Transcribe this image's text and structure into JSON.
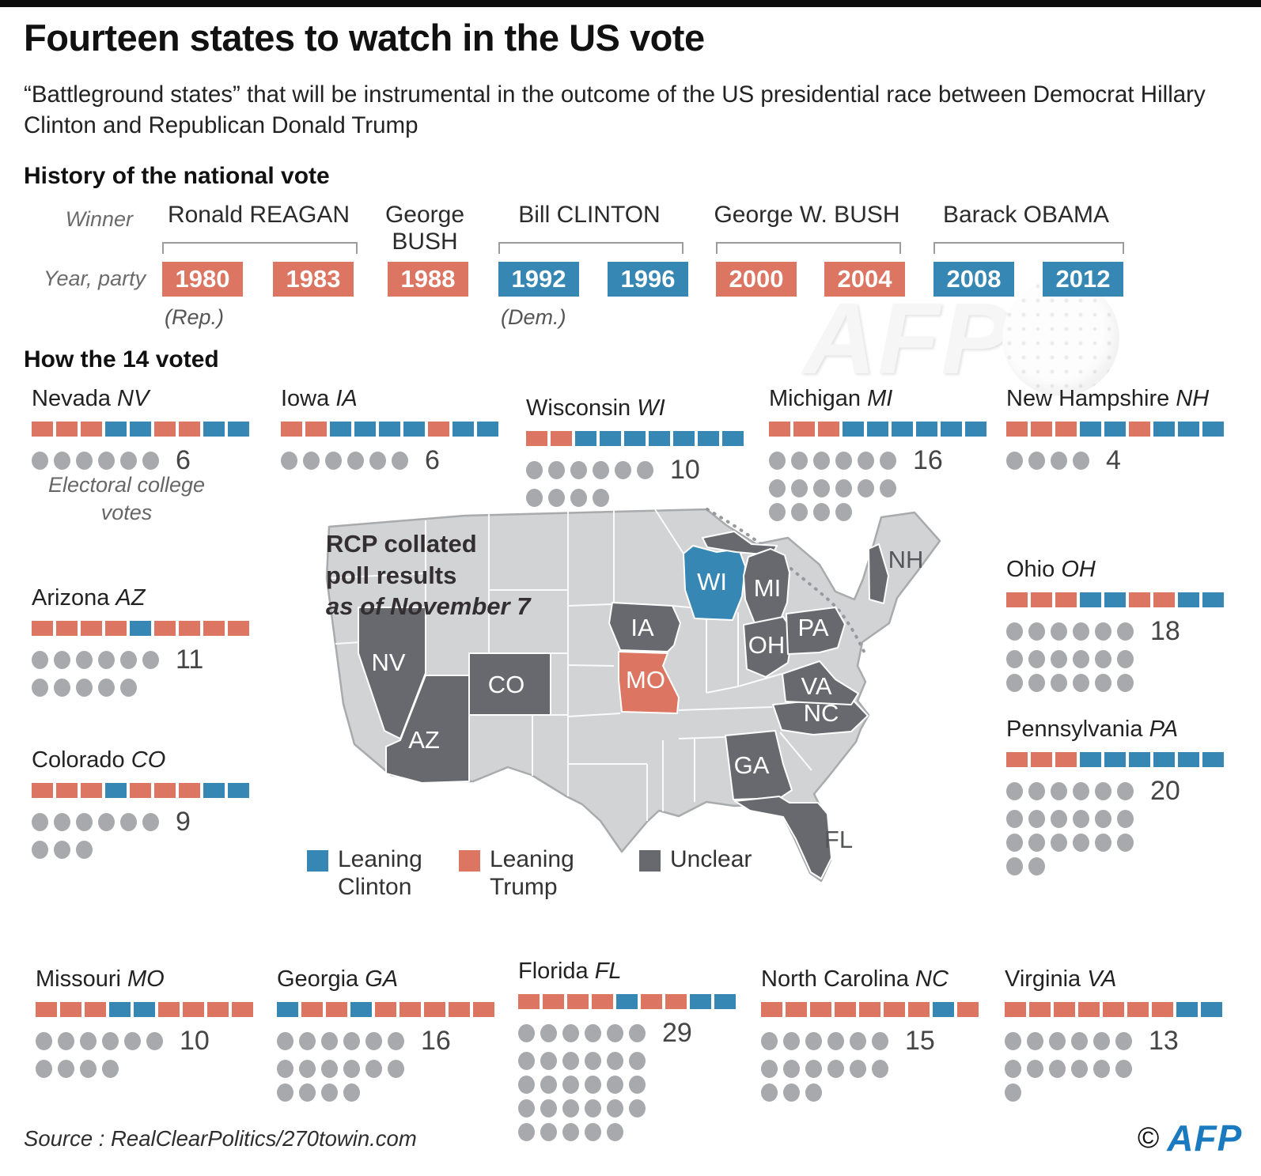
{
  "header": {
    "title": "Fourteen states to watch in the US vote",
    "subtitle": "“Battleground states” that will be instrumental in the outcome of the US presidential race between Democrat Hillary Clinton and Republican Donald Trump"
  },
  "colors": {
    "rep": "#dc7561",
    "dem": "#3787b4",
    "unclear": "#68696e",
    "land": "#d2d3d5",
    "dot": "#a8a9ad"
  },
  "history": {
    "heading": "History of the national vote",
    "winner_label": "Winner",
    "year_party_label": "Year, party",
    "rep_note": "(Rep.)",
    "dem_note": "(Dem.)",
    "winners": [
      {
        "name": "Ronald REAGAN"
      },
      {
        "name": "George BUSH"
      },
      {
        "name": "Bill CLINTON"
      },
      {
        "name": "George W. BUSH"
      },
      {
        "name": "Barack OBAMA"
      }
    ],
    "years": [
      {
        "year": "1980",
        "party": "R"
      },
      {
        "year": "1983",
        "party": "R"
      },
      {
        "year": "1988",
        "party": "R"
      },
      {
        "year": "1992",
        "party": "D"
      },
      {
        "year": "1996",
        "party": "D"
      },
      {
        "year": "2000",
        "party": "R"
      },
      {
        "year": "2004",
        "party": "R"
      },
      {
        "year": "2008",
        "party": "D"
      },
      {
        "year": "2012",
        "party": "D"
      }
    ]
  },
  "how_voted": {
    "heading": "How the 14 voted",
    "electoral_caption": "Electoral college votes"
  },
  "states": [
    {
      "abbr": "NV",
      "name": "Nevada",
      "votes": 6,
      "history": [
        "R",
        "R",
        "R",
        "D",
        "D",
        "R",
        "R",
        "D",
        "D"
      ],
      "dot_rows": [
        6
      ],
      "lean": "unclear"
    },
    {
      "abbr": "IA",
      "name": "Iowa",
      "votes": 6,
      "history": [
        "R",
        "R",
        "D",
        "D",
        "D",
        "D",
        "R",
        "D",
        "D"
      ],
      "dot_rows": [
        6
      ],
      "lean": "unclear"
    },
    {
      "abbr": "WI",
      "name": "Wisconsin",
      "votes": 10,
      "history": [
        "R",
        "R",
        "D",
        "D",
        "D",
        "D",
        "D",
        "D",
        "D"
      ],
      "dot_rows": [
        6,
        4
      ],
      "lean": "clinton"
    },
    {
      "abbr": "MI",
      "name": "Michigan",
      "votes": 16,
      "history": [
        "R",
        "R",
        "R",
        "D",
        "D",
        "D",
        "D",
        "D",
        "D"
      ],
      "dot_rows": [
        6,
        6,
        4
      ],
      "lean": "unclear"
    },
    {
      "abbr": "NH",
      "name": "New Hampshire",
      "votes": 4,
      "history": [
        "R",
        "R",
        "R",
        "D",
        "D",
        "R",
        "D",
        "D",
        "D"
      ],
      "dot_rows": [
        4
      ],
      "lean": "unclear"
    },
    {
      "abbr": "AZ",
      "name": "Arizona",
      "votes": 11,
      "history": [
        "R",
        "R",
        "R",
        "R",
        "D",
        "R",
        "R",
        "R",
        "R"
      ],
      "dot_rows": [
        6,
        5
      ],
      "lean": "unclear"
    },
    {
      "abbr": "CO",
      "name": "Colorado",
      "votes": 9,
      "history": [
        "R",
        "R",
        "R",
        "D",
        "R",
        "R",
        "R",
        "D",
        "D"
      ],
      "dot_rows": [
        6,
        3
      ],
      "lean": "unclear"
    },
    {
      "abbr": "OH",
      "name": "Ohio",
      "votes": 18,
      "history": [
        "R",
        "R",
        "R",
        "D",
        "D",
        "R",
        "R",
        "D",
        "D"
      ],
      "dot_rows": [
        6,
        6,
        6
      ],
      "lean": "unclear"
    },
    {
      "abbr": "PA",
      "name": "Pennsylvania",
      "votes": 20,
      "history": [
        "R",
        "R",
        "R",
        "D",
        "D",
        "D",
        "D",
        "D",
        "D"
      ],
      "dot_rows": [
        6,
        6,
        6,
        2
      ],
      "lean": "unclear"
    },
    {
      "abbr": "MO",
      "name": "Missouri",
      "votes": 10,
      "history": [
        "R",
        "R",
        "R",
        "D",
        "D",
        "R",
        "R",
        "R",
        "R"
      ],
      "dot_rows": [
        6,
        4
      ],
      "lean": "trump"
    },
    {
      "abbr": "GA",
      "name": "Georgia",
      "votes": 16,
      "history": [
        "D",
        "R",
        "R",
        "D",
        "R",
        "R",
        "R",
        "R",
        "R"
      ],
      "dot_rows": [
        6,
        6,
        4
      ],
      "lean": "unclear"
    },
    {
      "abbr": "FL",
      "name": "Florida",
      "votes": 29,
      "history": [
        "R",
        "R",
        "R",
        "R",
        "D",
        "R",
        "R",
        "D",
        "D"
      ],
      "dot_rows": [
        6,
        6,
        6,
        6,
        5
      ],
      "lean": "unclear"
    },
    {
      "abbr": "NC",
      "name": "North Carolina",
      "votes": 15,
      "history": [
        "R",
        "R",
        "R",
        "R",
        "R",
        "R",
        "R",
        "D",
        "R"
      ],
      "dot_rows": [
        6,
        6,
        3
      ],
      "lean": "unclear"
    },
    {
      "abbr": "VA",
      "name": "Virginia",
      "votes": 13,
      "history": [
        "R",
        "R",
        "R",
        "R",
        "R",
        "R",
        "R",
        "D",
        "D"
      ],
      "dot_rows": [
        6,
        6,
        1
      ],
      "lean": "unclear"
    }
  ],
  "map": {
    "note_line1": "RCP collated",
    "note_line2": "poll results",
    "note_line3": "as of November 7",
    "legend": [
      {
        "label": "Leaning Clinton",
        "key": "clinton"
      },
      {
        "label": "Leaning Trump",
        "key": "trump"
      },
      {
        "label": "Unclear",
        "key": "unclear"
      }
    ]
  },
  "footer": {
    "source": "Source : RealClearPolitics/270towin.com",
    "copyright": "©",
    "logo": "AFP"
  },
  "watermark": "AFP",
  "chart_data": [
    {
      "type": "table",
      "title": "History of the national vote",
      "columns": [
        "year",
        "party",
        "winner"
      ],
      "rows": [
        [
          "1980",
          "Rep.",
          "Ronald REAGAN"
        ],
        [
          "1983",
          "Rep.",
          "Ronald REAGAN"
        ],
        [
          "1988",
          "Rep.",
          "George BUSH"
        ],
        [
          "1992",
          "Dem.",
          "Bill CLINTON"
        ],
        [
          "1996",
          "Dem.",
          "Bill CLINTON"
        ],
        [
          "2000",
          "Rep.",
          "George W. BUSH"
        ],
        [
          "2004",
          "Rep.",
          "George W. BUSH"
        ],
        [
          "2008",
          "Dem.",
          "Barack OBAMA"
        ],
        [
          "2012",
          "Dem.",
          "Barack OBAMA"
        ]
      ]
    },
    {
      "type": "table",
      "title": "How the 14 voted (vote history 1980-2012, R=Republican, D=Democrat) and electoral college votes",
      "columns": [
        "state",
        "abbr",
        "electoral_college_votes",
        "vote_history",
        "rcp_poll_lean_nov7"
      ],
      "rows": [
        [
          "Nevada",
          "NV",
          6,
          "R R R D D R R D D",
          "Unclear"
        ],
        [
          "Iowa",
          "IA",
          6,
          "R R D D D D R D D",
          "Unclear"
        ],
        [
          "Wisconsin",
          "WI",
          10,
          "R R D D D D D D D",
          "Leaning Clinton"
        ],
        [
          "Michigan",
          "MI",
          16,
          "R R R D D D D D D",
          "Unclear"
        ],
        [
          "New Hampshire",
          "NH",
          4,
          "R R R D D R D D D",
          "Unclear"
        ],
        [
          "Arizona",
          "AZ",
          11,
          "R R R R D R R R R",
          "Unclear"
        ],
        [
          "Colorado",
          "CO",
          9,
          "R R R D R R R D D",
          "Unclear"
        ],
        [
          "Ohio",
          "OH",
          18,
          "R R R D D R R D D",
          "Unclear"
        ],
        [
          "Pennsylvania",
          "PA",
          20,
          "R R R D D D D D D",
          "Unclear"
        ],
        [
          "Missouri",
          "MO",
          10,
          "R R R D D R R R R",
          "Leaning Trump"
        ],
        [
          "Georgia",
          "GA",
          16,
          "D R R D R R R R R",
          "Unclear"
        ],
        [
          "Florida",
          "FL",
          29,
          "R R R R D R R D D",
          "Unclear"
        ],
        [
          "North Carolina",
          "NC",
          15,
          "R R R R R R R D R",
          "Unclear"
        ],
        [
          "Virginia",
          "VA",
          13,
          "R R R R R R R D D",
          "Unclear"
        ]
      ]
    }
  ]
}
